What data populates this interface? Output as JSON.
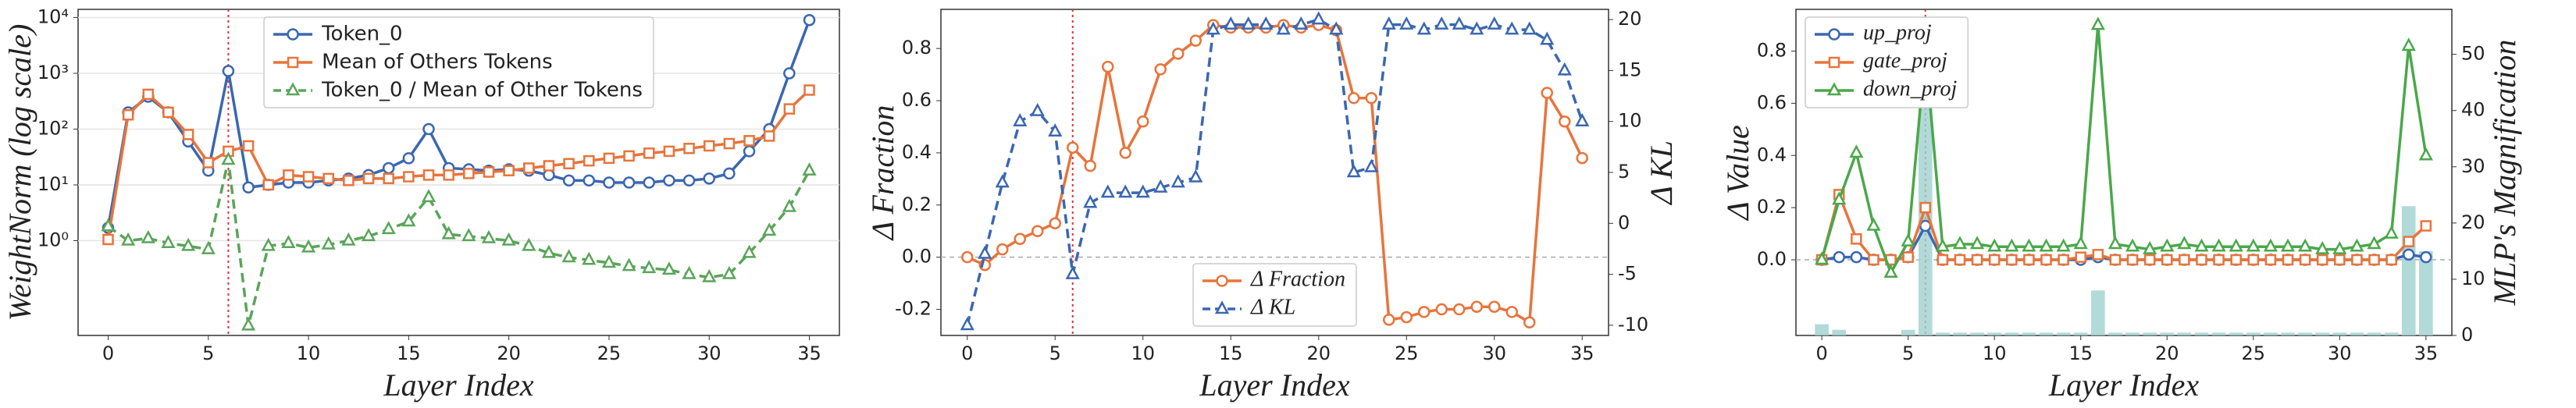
{
  "chart_data": [
    {
      "type": "line",
      "log_y": true,
      "grid": true,
      "vline": 6,
      "legend": "upper center",
      "xlabel": "Layer Index",
      "ylabel": "WeightNorm (log scale)",
      "xlim": [
        -1.5,
        36.5
      ],
      "xticks": [
        0,
        5,
        10,
        15,
        20,
        25,
        30,
        35
      ],
      "ylim": [
        0.02,
        14000
      ],
      "yticks": [
        {
          "value": 1,
          "label": "10⁰"
        },
        {
          "value": 10,
          "label": "10¹"
        },
        {
          "value": 100,
          "label": "10²"
        },
        {
          "value": 1000,
          "label": "10³"
        },
        {
          "value": 10000,
          "label": "10⁴"
        }
      ],
      "x": [
        0,
        1,
        2,
        3,
        4,
        5,
        6,
        7,
        8,
        9,
        10,
        11,
        12,
        13,
        14,
        15,
        16,
        17,
        18,
        19,
        20,
        21,
        22,
        23,
        24,
        25,
        26,
        27,
        28,
        29,
        30,
        31,
        32,
        33,
        34,
        35
      ],
      "series": [
        {
          "name": "Token_0",
          "color": "#3a67b1",
          "marker": "o",
          "dash": false,
          "values": [
            1.7,
            200,
            380,
            200,
            60,
            18,
            1100,
            9,
            10,
            11,
            11,
            12,
            13,
            15,
            20,
            30,
            100,
            20,
            19,
            18,
            19,
            18,
            15,
            12,
            12,
            11,
            11,
            11,
            12,
            12,
            13,
            16,
            40,
            100,
            1000,
            9000
          ]
        },
        {
          "name": "Mean of Others Tokens",
          "color": "#e8743b",
          "marker": "s",
          "dash": false,
          "values": [
            1.05,
            180,
            420,
            200,
            80,
            25,
            40,
            50,
            10,
            15,
            14,
            13,
            12,
            13,
            13,
            14,
            15,
            15,
            16,
            17,
            18,
            20,
            22,
            24,
            27,
            30,
            33,
            37,
            40,
            45,
            50,
            55,
            62,
            75,
            230,
            500
          ]
        },
        {
          "name": "Token_0 / Mean of Other Tokens",
          "color": "#5aa55a",
          "marker": "^",
          "dash": true,
          "values": [
            1.8,
            1.0,
            1.1,
            0.9,
            0.8,
            0.7,
            28,
            0.03,
            0.8,
            0.9,
            0.75,
            0.85,
            1.0,
            1.2,
            1.6,
            2.2,
            6,
            1.3,
            1.2,
            1.1,
            1.0,
            0.8,
            0.6,
            0.5,
            0.45,
            0.4,
            0.35,
            0.32,
            0.3,
            0.25,
            0.22,
            0.25,
            0.6,
            1.5,
            4,
            18
          ]
        }
      ]
    },
    {
      "type": "line",
      "grid": false,
      "vline": 6,
      "hline": 0,
      "legend": "lower center",
      "xlabel": "Layer Index",
      "ylabel": "Δ Fraction",
      "y2label": "Δ KL",
      "xlim": [
        -1.5,
        36.5
      ],
      "xticks": [
        0,
        5,
        10,
        15,
        20,
        25,
        30,
        35
      ],
      "ylim": [
        -0.3,
        0.95
      ],
      "yticks": [
        -0.2,
        {
          "value": 0,
          "label": "0.0"
        },
        0.2,
        0.4,
        0.6,
        0.8
      ],
      "y2lim": [
        -11,
        21
      ],
      "y2ticks": [
        -10,
        -5,
        0,
        5,
        10,
        15,
        20
      ],
      "x": [
        0,
        1,
        2,
        3,
        4,
        5,
        6,
        7,
        8,
        9,
        10,
        11,
        12,
        13,
        14,
        15,
        16,
        17,
        18,
        19,
        20,
        21,
        22,
        23,
        24,
        25,
        26,
        27,
        28,
        29,
        30,
        31,
        32,
        33,
        34,
        35
      ],
      "series": [
        {
          "name": "Δ Fraction",
          "color": "#e8743b",
          "marker": "o",
          "dash": false,
          "values": [
            0.0,
            -0.03,
            0.03,
            0.07,
            0.1,
            0.13,
            0.42,
            0.35,
            0.73,
            0.4,
            0.52,
            0.72,
            0.78,
            0.83,
            0.89,
            0.88,
            0.88,
            0.88,
            0.89,
            0.88,
            0.89,
            0.87,
            0.61,
            0.61,
            -0.24,
            -0.23,
            -0.21,
            -0.2,
            -0.2,
            -0.19,
            -0.19,
            -0.21,
            -0.25,
            0.63,
            0.52,
            0.38
          ]
        },
        {
          "name": "Δ KL",
          "color": "#3a67b1",
          "marker": "^",
          "dash": true,
          "axis": "y2",
          "values": [
            -10,
            -3,
            4,
            10,
            11,
            9,
            -5,
            2,
            3,
            3,
            3,
            3.5,
            4,
            4.5,
            19,
            19.5,
            19.5,
            19.5,
            19,
            19.5,
            20,
            19,
            5,
            5.5,
            19.5,
            19.5,
            19,
            19.5,
            19.5,
            19,
            19.5,
            19,
            19,
            18,
            15,
            10
          ]
        }
      ]
    },
    {
      "type": "bar-line",
      "grid": false,
      "vline": 6,
      "hline": 0,
      "legend": "upper left",
      "xlabel": "Layer Index",
      "ylabel": "Δ Value",
      "y2label": "MLP's Magnification",
      "xlim": [
        -1.5,
        36.5
      ],
      "xticks": [
        0,
        5,
        10,
        15,
        20,
        25,
        30,
        35
      ],
      "ylim": [
        -0.29,
        0.96
      ],
      "yticks": [
        {
          "value": 0,
          "label": "0.0"
        },
        0.2,
        0.4,
        0.6,
        0.8
      ],
      "y2lim": [
        0,
        58
      ],
      "y2ticks": [
        0,
        10,
        20,
        30,
        40,
        50
      ],
      "x": [
        0,
        1,
        2,
        3,
        4,
        5,
        6,
        7,
        8,
        9,
        10,
        11,
        12,
        13,
        14,
        15,
        16,
        17,
        18,
        19,
        20,
        21,
        22,
        23,
        24,
        25,
        26,
        27,
        28,
        29,
        30,
        31,
        32,
        33,
        34,
        35
      ],
      "series": [
        {
          "kind": "bar",
          "color": "#9fd1cf",
          "axis": "y2",
          "values": [
            2,
            1,
            0,
            0,
            0,
            1,
            52,
            0.5,
            0.5,
            0.5,
            0.5,
            0.5,
            0.5,
            0.5,
            0.5,
            0.5,
            8,
            0.5,
            0.5,
            0.5,
            0.5,
            0.5,
            0.5,
            0.5,
            0.5,
            0.5,
            0.5,
            0.5,
            0.5,
            0.5,
            0.5,
            0.5,
            0.5,
            0.5,
            23,
            15
          ]
        },
        {
          "name": "up_proj",
          "color": "#3a67b1",
          "marker": "o",
          "dash": false,
          "values": [
            0,
            0.01,
            0.01,
            0,
            0,
            0.01,
            0.13,
            0,
            0,
            0,
            0,
            0,
            0,
            0,
            0,
            0,
            0.01,
            0,
            0,
            0,
            0,
            0,
            0,
            0,
            0,
            0,
            0,
            0,
            0,
            0,
            0,
            0,
            0,
            0,
            0.02,
            0.01
          ]
        },
        {
          "name": "gate_proj",
          "color": "#e8743b",
          "marker": "s",
          "dash": false,
          "values": [
            0,
            0.25,
            0.08,
            0,
            0,
            0.01,
            0.2,
            0,
            0,
            0,
            0,
            0,
            0,
            0,
            0,
            0.01,
            0.02,
            0,
            0,
            0,
            0,
            0,
            0,
            0,
            0,
            0,
            0,
            0,
            0,
            0,
            0,
            0,
            0,
            0,
            0.07,
            0.13
          ]
        },
        {
          "name": "down_proj",
          "color": "#4aa84a",
          "marker": "^",
          "dash": false,
          "values": [
            0,
            0.23,
            0.41,
            0.13,
            -0.05,
            0.07,
            0.8,
            0.05,
            0.06,
            0.06,
            0.05,
            0.05,
            0.05,
            0.05,
            0.05,
            0.06,
            0.9,
            0.06,
            0.05,
            0.04,
            0.05,
            0.06,
            0.05,
            0.05,
            0.05,
            0.05,
            0.05,
            0.05,
            0.05,
            0.04,
            0.04,
            0.05,
            0.06,
            0.1,
            0.82,
            0.4
          ]
        }
      ]
    }
  ]
}
